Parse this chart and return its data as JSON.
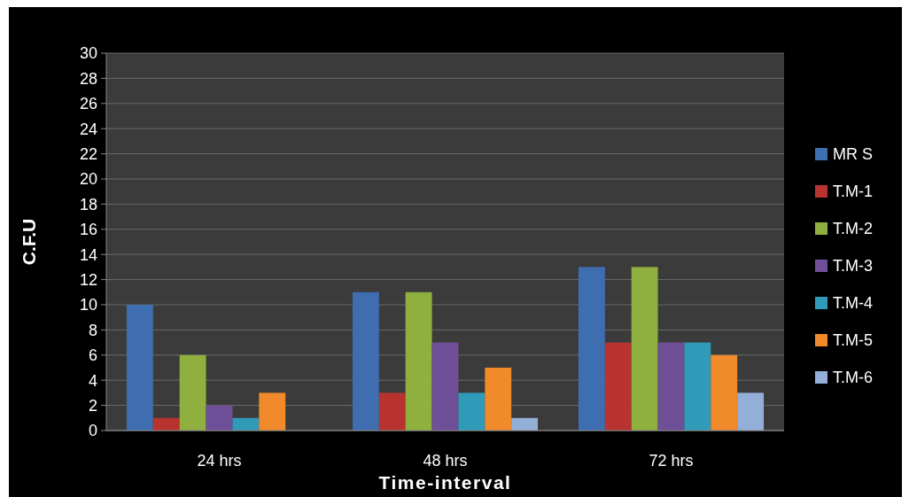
{
  "chart_data": {
    "type": "bar",
    "xlabel": "Time-interval",
    "ylabel": "C.F.U",
    "categories": [
      "24 hrs",
      "48 hrs",
      "72 hrs"
    ],
    "series": [
      {
        "name": "MR S",
        "color": "#3e6db0",
        "values": [
          10,
          11,
          13
        ]
      },
      {
        "name": "T.M-1",
        "color": "#b8332f",
        "values": [
          1,
          3,
          7
        ]
      },
      {
        "name": "T.M-2",
        "color": "#8fb03f",
        "values": [
          6,
          11,
          13
        ]
      },
      {
        "name": "T.M-3",
        "color": "#6f4f97",
        "values": [
          2,
          7,
          7
        ]
      },
      {
        "name": "T.M-4",
        "color": "#2f9bb8",
        "values": [
          1,
          3,
          7
        ]
      },
      {
        "name": "T.M-5",
        "color": "#f08a2a",
        "values": [
          3,
          5,
          6
        ]
      },
      {
        "name": "T.M-6",
        "color": "#93afd8",
        "values": [
          0,
          1,
          3
        ]
      }
    ],
    "ylim": [
      0,
      30
    ],
    "yticks": [
      0,
      2,
      4,
      6,
      8,
      10,
      12,
      14,
      16,
      18,
      20,
      22,
      24,
      26,
      28,
      30
    ],
    "grid": "y",
    "legend": "right"
  }
}
